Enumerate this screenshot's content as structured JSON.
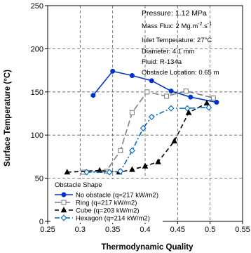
{
  "chart_data": {
    "type": "line",
    "xlabel": "Thermodynamic Quality",
    "ylabel": "Surface Temperature (°C)",
    "xlim": [
      0.25,
      0.55
    ],
    "ylim": [
      0,
      250
    ],
    "xticks": [
      0.25,
      0.3,
      0.35,
      0.4,
      0.45,
      0.5,
      0.55
    ],
    "xtick_labels": [
      "0.25",
      "0.3",
      "0.35",
      "0.4",
      "0.45",
      "0.5",
      "0.55"
    ],
    "yticks": [
      0,
      50,
      100,
      150,
      200,
      250
    ],
    "ytick_labels": [
      "0",
      "50",
      "100",
      "150",
      "200",
      "250"
    ],
    "grid": "dashed",
    "info_lines": [
      {
        "text": "Pressure: 1.12 MPa",
        "size": "large"
      },
      {
        "text": "Mass Flux: 2 Mg.m",
        "sup1": "-2",
        "mid": ".s",
        "sup2": "-1"
      },
      {
        "text": "Inlet Temperature: 27°C"
      },
      {
        "text": "Diameter: 4.1 mm"
      },
      {
        "text": "Fluid: R-134a"
      },
      {
        "text": "Obstacle Location: 0.65 m"
      }
    ],
    "legend_title": "Obstacle Shape",
    "legend_placement": "bottom-left",
    "series": [
      {
        "name": "No obstacle (q=217 kW/m2)",
        "color": "#0033cc",
        "dash": "solid",
        "marker": "circle-filled",
        "x": [
          0.32,
          0.35,
          0.38,
          0.41,
          0.44,
          0.47,
          0.51
        ],
        "y": [
          146,
          174,
          169,
          163,
          151,
          144,
          138
        ]
      },
      {
        "name": "Ring (q=217 kW/m2)",
        "color": "#808080",
        "dash": "longdash",
        "marker": "square-open",
        "x": [
          0.305,
          0.34,
          0.362,
          0.38,
          0.403,
          0.433,
          0.463,
          0.505
        ],
        "y": [
          57,
          58,
          82,
          126,
          150,
          145,
          151,
          143
        ]
      },
      {
        "name": "Cube (q=203 kW/m2)",
        "color": "#000000",
        "dash": "dash",
        "marker": "triangle-filled",
        "x": [
          0.28,
          0.33,
          0.36,
          0.38,
          0.4,
          0.42,
          0.445,
          0.467,
          0.495
        ],
        "y": [
          57,
          59,
          57,
          60,
          64,
          69,
          93,
          126,
          137
        ]
      },
      {
        "name": "Hexagon (q=214 kW/m2)",
        "color": "#0066cc",
        "dash": "dashdot",
        "marker": "diamond-open",
        "x": [
          0.31,
          0.345,
          0.362,
          0.38,
          0.397,
          0.41,
          0.44,
          0.465,
          0.498
        ],
        "y": [
          57,
          57,
          58,
          82,
          108,
          121,
          131,
          131,
          132
        ]
      }
    ]
  }
}
